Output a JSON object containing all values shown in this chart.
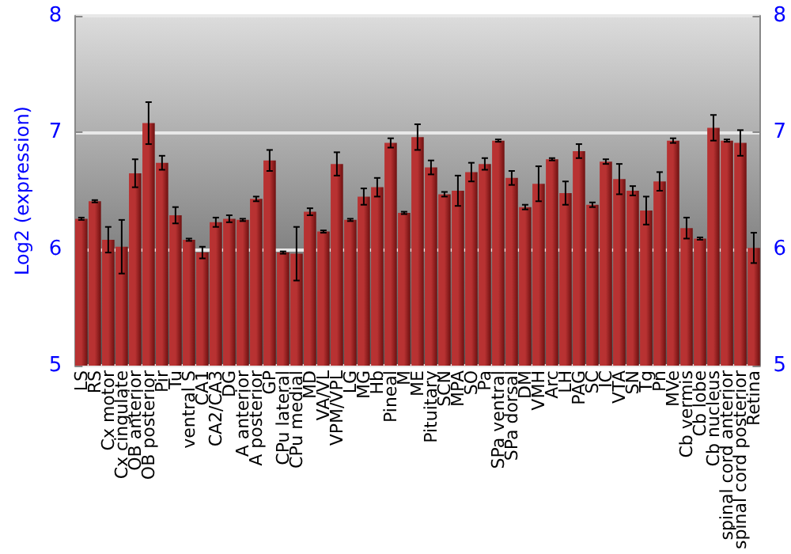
{
  "chart_data": {
    "type": "bar",
    "ylabel": "Log2 (expression)",
    "categories": [
      "LS",
      "RS",
      "Cx motor",
      "Cx cingulate",
      "OB anterior",
      "OB posterior",
      "Pir",
      "Tu",
      "ventral S",
      "CA1",
      "CA2/CA3",
      "DG",
      "A anterior",
      "A posterior",
      "GP",
      "CPu lateral",
      "CPu medial",
      "MD",
      "VA/VL",
      "VPM/VPL",
      "LG",
      "MG",
      "Hb",
      "Pineal",
      "M",
      "ME",
      "Pituitary",
      "SCN",
      "MPA",
      "SO",
      "Pa",
      "SPa ventral",
      "SPa dorsal",
      "DM",
      "VMH",
      "Arc",
      "LH",
      "PAG",
      "SC",
      "IC",
      "VTA",
      "SN",
      "Tg",
      "Pn",
      "MVe",
      "Cb vermis",
      "Cb lobe",
      "Cb nucleus",
      "spinal cord anterior",
      "spinal cord posterior",
      "Retina"
    ],
    "series": [
      {
        "color": "#b83232",
        "values": [
          6.26,
          6.41,
          6.08,
          6.02,
          6.65,
          7.08,
          6.74,
          6.29,
          6.08,
          5.97,
          6.23,
          6.26,
          6.25,
          6.43,
          6.76,
          5.97,
          5.96,
          6.32,
          6.15,
          6.73,
          6.25,
          6.45,
          6.53,
          6.91,
          6.31,
          6.96,
          6.7,
          6.47,
          6.5,
          6.66,
          6.73,
          6.93,
          6.61,
          6.36,
          6.56,
          6.77,
          6.48,
          6.84,
          6.38,
          6.75,
          6.6,
          6.5,
          6.33,
          6.58,
          6.93,
          6.18,
          6.09,
          7.04,
          6.93,
          6.91,
          6.01
        ],
        "errors": [
          0.01,
          0.01,
          0.11,
          0.23,
          0.12,
          0.18,
          0.06,
          0.07,
          0.01,
          0.05,
          0.04,
          0.03,
          0.01,
          0.02,
          0.09,
          0.01,
          0.23,
          0.03,
          0.01,
          0.1,
          0.01,
          0.07,
          0.08,
          0.04,
          0.01,
          0.11,
          0.06,
          0.02,
          0.13,
          0.08,
          0.05,
          0.01,
          0.06,
          0.02,
          0.15,
          0.01,
          0.1,
          0.06,
          0.02,
          0.02,
          0.13,
          0.04,
          0.12,
          0.08,
          0.02,
          0.09,
          0.01,
          0.11,
          0.01,
          0.11,
          0.13
        ]
      }
    ],
    "ylim": [
      5,
      8
    ],
    "yticks": [
      5,
      6,
      7,
      8
    ],
    "y2lim": [
      5,
      8
    ],
    "y2ticks": [
      5,
      6,
      7,
      8
    ],
    "grid": "y"
  }
}
